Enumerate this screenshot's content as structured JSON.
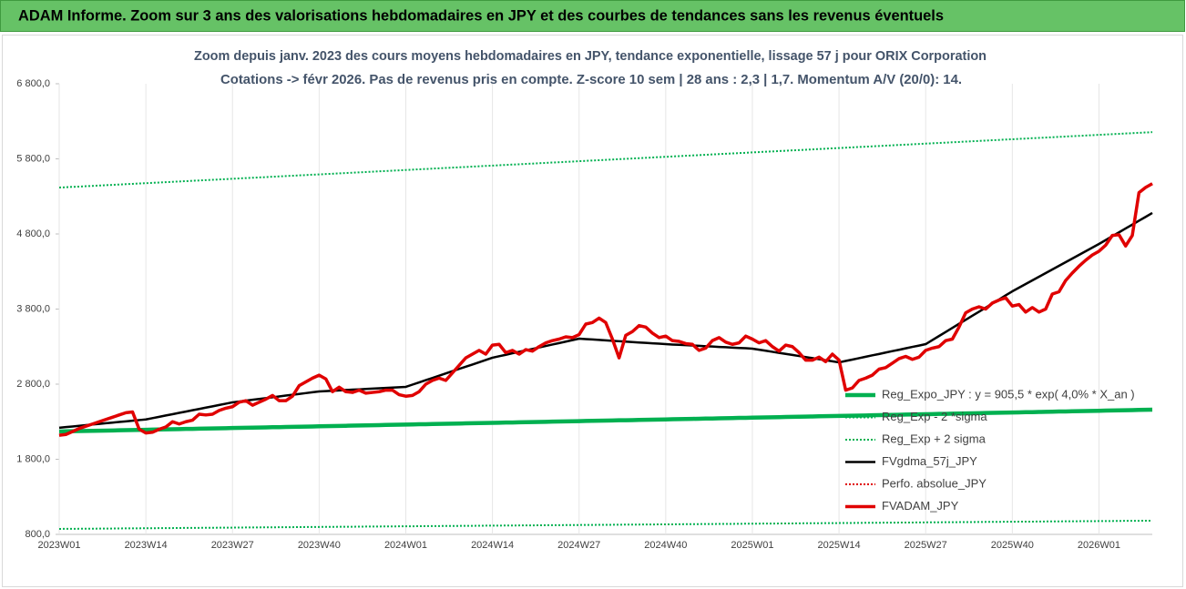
{
  "header": {
    "title": "ADAM Informe. Zoom sur 3 ans des valorisations hebdomadaires en JPY et des courbes de tendances sans les revenus éventuels"
  },
  "chart_data": {
    "type": "line",
    "title": "Zoom depuis janv. 2023 des cours moyens hebdomadaires en JPY, tendance exponentielle, lissage 57 j pour ORIX Corporation",
    "subtitle": "Cotations -> févr 2026. Pas de revenus pris en compte. Z-score 10 sem | 28 ans : 2,3 | 1,7. Momentum A/V (20/0): 14.",
    "grid": true,
    "legend": "bottom-right",
    "ylim": [
      800,
      6800
    ],
    "yticks": [
      {
        "value": 800,
        "label": "800,0"
      },
      {
        "value": 1800,
        "label": "1 800,0"
      },
      {
        "value": 2800,
        "label": "2 800,0"
      },
      {
        "value": 3800,
        "label": "3 800,0"
      },
      {
        "value": 4800,
        "label": "4 800,0"
      },
      {
        "value": 5800,
        "label": "5 800,0"
      },
      {
        "value": 6800,
        "label": "6 800,0"
      }
    ],
    "categories": [
      "2023W01",
      null,
      null,
      null,
      null,
      null,
      null,
      null,
      null,
      null,
      null,
      null,
      null,
      "2023W14",
      null,
      null,
      null,
      null,
      null,
      null,
      null,
      null,
      null,
      null,
      null,
      null,
      "2023W27",
      null,
      null,
      null,
      null,
      null,
      null,
      null,
      null,
      null,
      null,
      null,
      null,
      "2023W40",
      null,
      null,
      null,
      null,
      null,
      null,
      null,
      null,
      null,
      null,
      null,
      null,
      "2024W01",
      null,
      null,
      null,
      null,
      null,
      null,
      null,
      null,
      null,
      null,
      null,
      null,
      "2024W14",
      null,
      null,
      null,
      null,
      null,
      null,
      null,
      null,
      null,
      null,
      null,
      null,
      "2024W27",
      null,
      null,
      null,
      null,
      null,
      null,
      null,
      null,
      null,
      null,
      null,
      null,
      "2024W40",
      null,
      null,
      null,
      null,
      null,
      null,
      null,
      null,
      null,
      null,
      null,
      null,
      "2025W01",
      null,
      null,
      null,
      null,
      null,
      null,
      null,
      null,
      null,
      null,
      null,
      null,
      "2025W14",
      null,
      null,
      null,
      null,
      null,
      null,
      null,
      null,
      null,
      null,
      null,
      null,
      "2025W27",
      null,
      null,
      null,
      null,
      null,
      null,
      null,
      null,
      null,
      null,
      null,
      null,
      "2025W40",
      null,
      null,
      null,
      null,
      null,
      null,
      null,
      null,
      null,
      null,
      null,
      null,
      "2026W01",
      null,
      null,
      null,
      null,
      null,
      null,
      null,
      null
    ],
    "series": [
      {
        "name": "Reg_Expo_JPY : y = 905,5 * exp( 4,0% *  X_an )",
        "color": "#00b050",
        "style": "thick",
        "values": [
          2170,
          2172,
          2174,
          2175,
          2177,
          2179,
          2181,
          2182,
          2184,
          2186,
          2188,
          2189,
          2191,
          2193,
          2195,
          2197,
          2198,
          2200,
          2202,
          2204,
          2205,
          2207,
          2209,
          2211,
          2212,
          2214,
          2216,
          2218,
          2220,
          2221,
          2223,
          2225,
          2227,
          2228,
          2230,
          2232,
          2234,
          2235,
          2237,
          2239,
          2241,
          2243,
          2244,
          2246,
          2248,
          2250,
          2251,
          2253,
          2255,
          2257,
          2259,
          2260,
          2262,
          2264,
          2266,
          2267,
          2269,
          2271,
          2273,
          2274,
          2276,
          2278,
          2280,
          2282,
          2283,
          2285,
          2287,
          2289,
          2290,
          2292,
          2294,
          2296,
          2297,
          2299,
          2301,
          2303,
          2305,
          2306,
          2308,
          2310,
          2312,
          2313,
          2315,
          2317,
          2319,
          2320,
          2322,
          2324,
          2326,
          2328,
          2329,
          2331,
          2333,
          2335,
          2336,
          2338,
          2340,
          2342,
          2343,
          2345,
          2347,
          2349,
          2351,
          2352,
          2354,
          2356,
          2358,
          2359,
          2361,
          2363,
          2365,
          2366,
          2368,
          2370,
          2372,
          2374,
          2375,
          2377,
          2379,
          2381,
          2382,
          2384,
          2386,
          2388,
          2389,
          2391,
          2393,
          2395,
          2397,
          2398,
          2400,
          2402,
          2404,
          2405,
          2407,
          2409,
          2411,
          2412,
          2414,
          2416,
          2418,
          2420,
          2421,
          2423,
          2425,
          2427,
          2428,
          2430,
          2432,
          2434,
          2436,
          2437,
          2439,
          2441,
          2443,
          2444,
          2446,
          2448,
          2450,
          2451,
          2453,
          2455,
          2457,
          2459,
          2460
        ]
      },
      {
        "name": "Reg_Exp - 2 *sigma",
        "color": "#00b050",
        "style": "dotted",
        "values": [
          873,
          874,
          874,
          875,
          876,
          876,
          877,
          878,
          878,
          879,
          880,
          880,
          881,
          882,
          882,
          883,
          884,
          884,
          885,
          886,
          886,
          887,
          888,
          888,
          889,
          890,
          890,
          891,
          892,
          892,
          893,
          894,
          894,
          895,
          896,
          896,
          897,
          898,
          898,
          899,
          900,
          900,
          901,
          902,
          902,
          903,
          904,
          904,
          905,
          906,
          906,
          907,
          908,
          908,
          909,
          910,
          910,
          911,
          912,
          912,
          913,
          914,
          914,
          915,
          916,
          916,
          917,
          918,
          918,
          919,
          920,
          920,
          921,
          922,
          922,
          923,
          924,
          924,
          925,
          926,
          926,
          927,
          928,
          928,
          929,
          930,
          930,
          931,
          932,
          932,
          933,
          934,
          934,
          935,
          936,
          936,
          937,
          938,
          938,
          939,
          940,
          940,
          941,
          942,
          942,
          943,
          944,
          944,
          945,
          946,
          946,
          947,
          948,
          948,
          949,
          950,
          950,
          951,
          952,
          952,
          953,
          954,
          954,
          955,
          956,
          956,
          957,
          958,
          958,
          959,
          960,
          960,
          961,
          962,
          962,
          963,
          964,
          964,
          965,
          966,
          966,
          967,
          968,
          968,
          969,
          970,
          970,
          971,
          972,
          972,
          973,
          974,
          974,
          975,
          976,
          976,
          977,
          978,
          978,
          979,
          980,
          980,
          981,
          982,
          982
        ]
      },
      {
        "name": "Reg_Exp + 2 sigma",
        "color": "#00b050",
        "style": "dotted",
        "values": [
          5418,
          5422,
          5427,
          5431,
          5436,
          5440,
          5445,
          5449,
          5454,
          5458,
          5463,
          5467,
          5472,
          5476,
          5481,
          5485,
          5490,
          5494,
          5499,
          5503,
          5508,
          5512,
          5517,
          5521,
          5526,
          5530,
          5535,
          5539,
          5544,
          5548,
          5553,
          5557,
          5562,
          5566,
          5571,
          5575,
          5580,
          5584,
          5589,
          5593,
          5598,
          5602,
          5607,
          5611,
          5616,
          5620,
          5625,
          5629,
          5634,
          5638,
          5643,
          5647,
          5652,
          5656,
          5661,
          5665,
          5670,
          5674,
          5679,
          5683,
          5688,
          5692,
          5697,
          5701,
          5706,
          5710,
          5715,
          5719,
          5724,
          5728,
          5733,
          5737,
          5742,
          5746,
          5751,
          5755,
          5760,
          5764,
          5769,
          5773,
          5778,
          5782,
          5787,
          5791,
          5796,
          5800,
          5805,
          5809,
          5814,
          5818,
          5823,
          5827,
          5832,
          5836,
          5841,
          5845,
          5850,
          5854,
          5859,
          5863,
          5868,
          5872,
          5877,
          5881,
          5886,
          5890,
          5895,
          5899,
          5904,
          5908,
          5913,
          5917,
          5922,
          5926,
          5931,
          5935,
          5940,
          5944,
          5949,
          5953,
          5958,
          5962,
          5967,
          5971,
          5976,
          5980,
          5985,
          5989,
          5994,
          5998,
          6003,
          6007,
          6012,
          6016,
          6021,
          6025,
          6030,
          6034,
          6039,
          6043,
          6048,
          6052,
          6057,
          6061,
          6066,
          6070,
          6075,
          6079,
          6084,
          6088,
          6093,
          6097,
          6102,
          6106,
          6111,
          6115,
          6120,
          6124,
          6129,
          6133,
          6138,
          6142,
          6147,
          6151,
          6156
        ]
      },
      {
        "name": "FVgdma_57j_JPY",
        "color": "#000000",
        "style": "solid",
        "values": [
          2220,
          2229,
          2237,
          2246,
          2254,
          2263,
          2271,
          2280,
          2288,
          2297,
          2305,
          2314,
          2322,
          2330,
          2348,
          2365,
          2383,
          2400,
          2418,
          2435,
          2453,
          2470,
          2488,
          2505,
          2523,
          2540,
          2558,
          2569,
          2580,
          2592,
          2603,
          2614,
          2625,
          2636,
          2648,
          2659,
          2670,
          2681,
          2692,
          2703,
          2708,
          2712,
          2717,
          2722,
          2727,
          2731,
          2736,
          2741,
          2745,
          2750,
          2755,
          2759,
          2764,
          2794,
          2824,
          2854,
          2883,
          2913,
          2943,
          2973,
          3003,
          3033,
          3062,
          3092,
          3122,
          3152,
          3172,
          3191,
          3211,
          3230,
          3250,
          3269,
          3289,
          3308,
          3328,
          3347,
          3367,
          3386,
          3406,
          3400,
          3395,
          3389,
          3384,
          3378,
          3372,
          3367,
          3361,
          3355,
          3350,
          3344,
          3339,
          3333,
          3328,
          3324,
          3319,
          3315,
          3310,
          3305,
          3301,
          3296,
          3292,
          3287,
          3282,
          3278,
          3273,
          3259,
          3245,
          3231,
          3217,
          3203,
          3189,
          3175,
          3161,
          3147,
          3133,
          3119,
          3105,
          3090,
          3109,
          3127,
          3146,
          3165,
          3184,
          3202,
          3221,
          3240,
          3258,
          3277,
          3296,
          3314,
          3333,
          3387,
          3441,
          3495,
          3549,
          3603,
          3657,
          3711,
          3765,
          3819,
          3873,
          3927,
          3982,
          4036,
          4085,
          4133,
          4182,
          4230,
          4279,
          4327,
          4376,
          4424,
          4473,
          4521,
          4570,
          4618,
          4667,
          4718,
          4770,
          4821,
          4873,
          4924,
          4976,
          5027,
          5079
        ]
      },
      {
        "name": "Perfo. absolue_JPY",
        "color": "#e00000",
        "style": "dotted",
        "values": [
          2120,
          2130,
          2170,
          2210,
          2240,
          2270,
          2300,
          2330,
          2360,
          2390,
          2420,
          2430,
          2200,
          2150,
          2160,
          2200,
          2230,
          2300,
          2270,
          2300,
          2320,
          2400,
          2390,
          2400,
          2450,
          2480,
          2500,
          2560,
          2580,
          2520,
          2560,
          2600,
          2650,
          2580,
          2580,
          2640,
          2780,
          2830,
          2880,
          2920,
          2870,
          2700,
          2760,
          2700,
          2690,
          2720,
          2680,
          2690,
          2700,
          2720,
          2720,
          2660,
          2640,
          2650,
          2700,
          2800,
          2850,
          2880,
          2850,
          2950,
          3050,
          3150,
          3200,
          3250,
          3200,
          3320,
          3330,
          3220,
          3250,
          3200,
          3260,
          3240,
          3300,
          3350,
          3380,
          3400,
          3430,
          3420,
          3460,
          3600,
          3620,
          3680,
          3620,
          3400,
          3150,
          3450,
          3500,
          3580,
          3560,
          3480,
          3420,
          3440,
          3380,
          3370,
          3340,
          3330,
          3250,
          3280,
          3380,
          3420,
          3360,
          3330,
          3350,
          3440,
          3400,
          3350,
          3380,
          3300,
          3240,
          3320,
          3300,
          3220,
          3120,
          3120,
          3160,
          3100,
          3200,
          3120,
          2720,
          2750,
          2850,
          2880,
          2920,
          3000,
          3020,
          3080,
          3140,
          3170,
          3130,
          3160,
          3250,
          3280,
          3300,
          3380,
          3400,
          3560,
          3750,
          3800,
          3830,
          3800,
          3880,
          3920,
          3950,
          3840,
          3860,
          3760,
          3820,
          3760,
          3800,
          4000,
          4030,
          4180,
          4280,
          4370,
          4450,
          4520,
          4570,
          4650,
          4780,
          4790,
          4640,
          4780,
          5350,
          5420,
          5470
        ]
      },
      {
        "name": "FVADAM_JPY",
        "color": "#e00000",
        "style": "bold",
        "values": [
          2120,
          2130,
          2170,
          2210,
          2240,
          2270,
          2300,
          2330,
          2360,
          2390,
          2420,
          2430,
          2200,
          2150,
          2160,
          2200,
          2230,
          2300,
          2270,
          2300,
          2320,
          2400,
          2390,
          2400,
          2450,
          2480,
          2500,
          2560,
          2580,
          2520,
          2560,
          2600,
          2650,
          2580,
          2580,
          2640,
          2780,
          2830,
          2880,
          2920,
          2870,
          2700,
          2760,
          2700,
          2690,
          2720,
          2680,
          2690,
          2700,
          2720,
          2720,
          2660,
          2640,
          2650,
          2700,
          2800,
          2850,
          2880,
          2850,
          2950,
          3050,
          3150,
          3200,
          3250,
          3200,
          3320,
          3330,
          3220,
          3250,
          3200,
          3260,
          3240,
          3300,
          3350,
          3380,
          3400,
          3430,
          3420,
          3460,
          3600,
          3620,
          3680,
          3620,
          3400,
          3150,
          3450,
          3500,
          3580,
          3560,
          3480,
          3420,
          3440,
          3380,
          3370,
          3340,
          3330,
          3250,
          3280,
          3380,
          3420,
          3360,
          3330,
          3350,
          3440,
          3400,
          3350,
          3380,
          3300,
          3240,
          3320,
          3300,
          3220,
          3120,
          3120,
          3160,
          3100,
          3200,
          3120,
          2720,
          2750,
          2850,
          2880,
          2920,
          3000,
          3020,
          3080,
          3140,
          3170,
          3130,
          3160,
          3250,
          3280,
          3300,
          3380,
          3400,
          3560,
          3750,
          3800,
          3830,
          3800,
          3880,
          3920,
          3950,
          3840,
          3860,
          3760,
          3820,
          3760,
          3800,
          4000,
          4030,
          4180,
          4280,
          4370,
          4450,
          4520,
          4570,
          4650,
          4780,
          4790,
          4640,
          4780,
          5350,
          5420,
          5470
        ]
      }
    ]
  }
}
